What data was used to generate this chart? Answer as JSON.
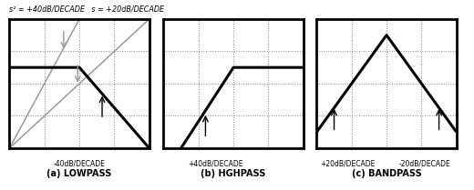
{
  "title_above": "s² = +40dB/DECADE   s = +20dB/DECADE",
  "panel_labels": [
    "(a) LOWPASS",
    "(b) HGHPASS",
    "(c) BANDPASS"
  ],
  "lp_label": "-40dB/DECADE",
  "hp_label": "+40dB/DECADE",
  "bp_label1": "+20dB/DECADE",
  "bp_label2": "-20dB/DECADE",
  "bg_color": "#ffffff",
  "box_color": "#000000",
  "grid_color": "#777777",
  "main_line_color": "#000000",
  "gray_line_color": "#999999",
  "main_lw": 2.2,
  "gray_lw": 1.1,
  "arrow_color": "#000000"
}
